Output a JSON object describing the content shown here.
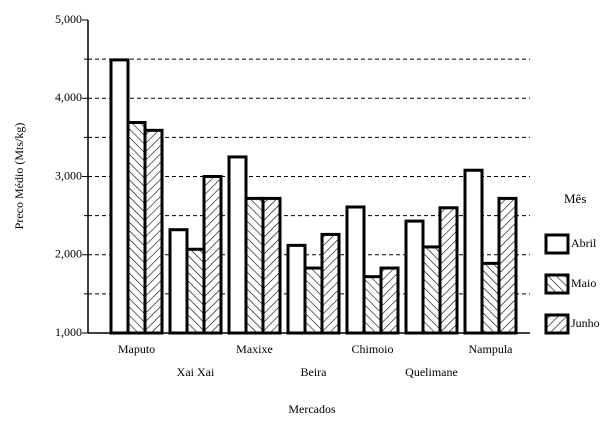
{
  "chart_data": {
    "type": "bar",
    "x_label": "Mercados",
    "y_label": "Preco Médio (Mts/kg)",
    "legend_title": "Mês",
    "legend": "right",
    "categories": [
      "Maputo",
      "Xai Xai",
      "Maxixe",
      "Beira",
      "Chimoio",
      "Quelimane",
      "Nampula"
    ],
    "series": [
      {
        "name": "Abril",
        "color": "#ffffff",
        "hatch": "none",
        "values": [
          4490,
          2320,
          3250,
          2120,
          2610,
          2430,
          3080
        ]
      },
      {
        "name": "Maio",
        "color": "#ffffff",
        "hatch": "backslash",
        "values": [
          3690,
          2070,
          2720,
          1830,
          1720,
          2100,
          1890
        ]
      },
      {
        "name": "Junho",
        "color": "#ffffff",
        "hatch": "slash",
        "values": [
          3590,
          3000,
          2720,
          2260,
          1830,
          2600,
          2720
        ]
      }
    ],
    "ylim": [
      1000,
      5000
    ],
    "yticks": [
      {
        "value": 1000,
        "label": "1,000"
      },
      {
        "value": 2000,
        "label": "2,000"
      },
      {
        "value": 3000,
        "label": "3,000"
      },
      {
        "value": 4000,
        "label": "4,000"
      },
      {
        "value": 5000,
        "label": "5,000"
      }
    ],
    "minor_yticks": [
      1500,
      2500,
      3500,
      4500
    ],
    "grid": true
  }
}
